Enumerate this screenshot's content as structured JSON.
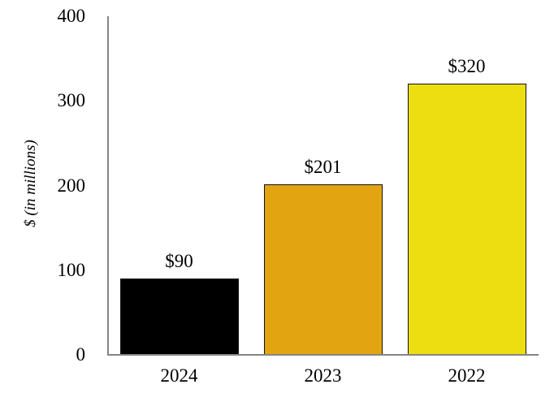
{
  "chart_data": {
    "type": "bar",
    "title": "",
    "xlabel": "",
    "ylabel": "$ (in millions)",
    "categories": [
      "2024",
      "2023",
      "2022"
    ],
    "values": [
      90,
      201,
      320
    ],
    "value_labels": [
      "$90",
      "$201",
      "$320"
    ],
    "bar_colors": [
      "#000000",
      "#E2A511",
      "#EDDE12"
    ],
    "bar_border_color": "#111111",
    "ylim": [
      0,
      400
    ],
    "yticks": [
      0,
      100,
      200,
      300,
      400
    ],
    "grid": false,
    "legend": "none",
    "axis_color": "#858585",
    "background_color": "#ffffff"
  }
}
